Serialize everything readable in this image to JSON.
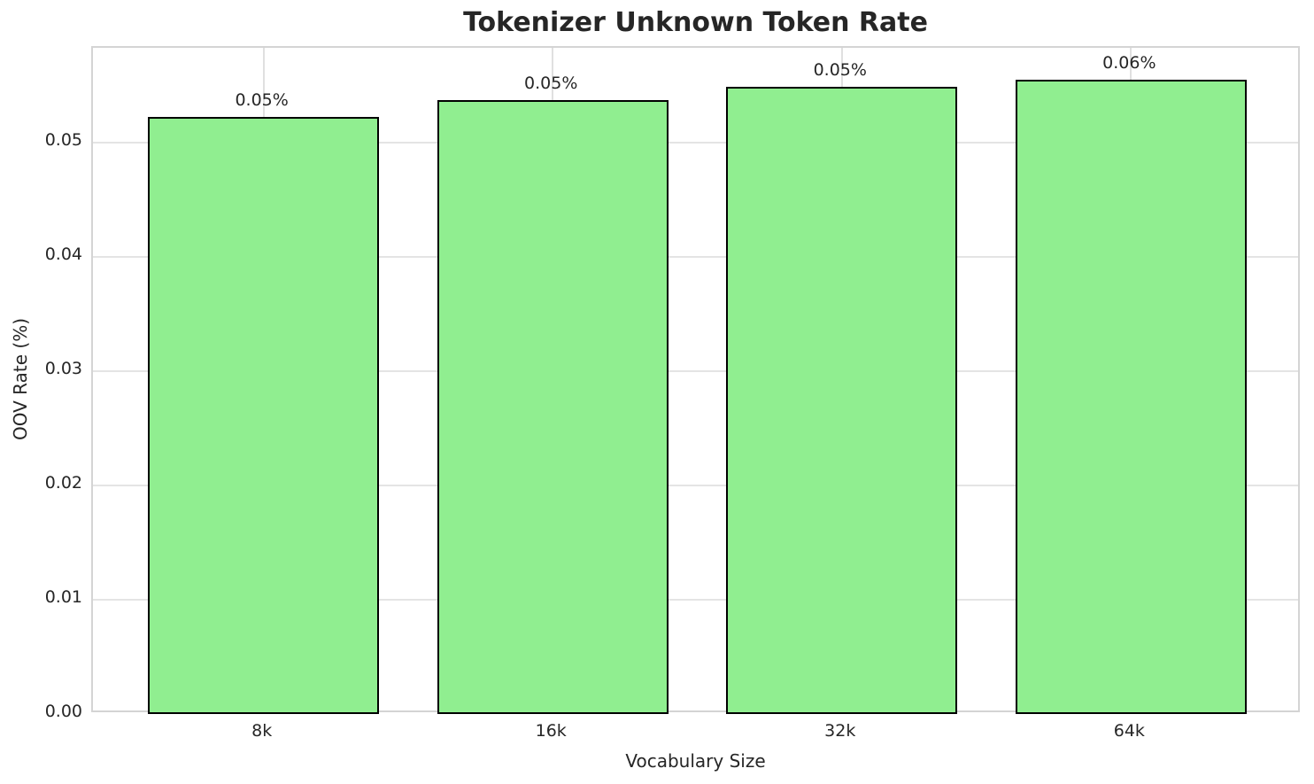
{
  "chart_data": {
    "type": "bar",
    "title": "Tokenizer Unknown Token Rate",
    "xlabel": "Vocabulary Size",
    "ylabel": "OOV Rate (%)",
    "categories": [
      "8k",
      "16k",
      "32k",
      "64k"
    ],
    "values": [
      0.0522,
      0.0537,
      0.0549,
      0.0555
    ],
    "bar_labels": [
      "0.05%",
      "0.05%",
      "0.05%",
      "0.06%"
    ],
    "yticks": [
      "0.00",
      "0.01",
      "0.02",
      "0.03",
      "0.04",
      "0.05"
    ],
    "ytick_values": [
      0.0,
      0.01,
      0.02,
      0.03,
      0.04,
      0.05
    ],
    "ylim": [
      0.0,
      0.058275
    ],
    "grid": true,
    "legend_position": "none",
    "colors": {
      "bar_fill": "#90EE90",
      "bar_edge": "#000000",
      "grid": "#e4e4e4",
      "spine": "#d4d4d4",
      "text": "#262626",
      "background": "#ffffff"
    }
  }
}
